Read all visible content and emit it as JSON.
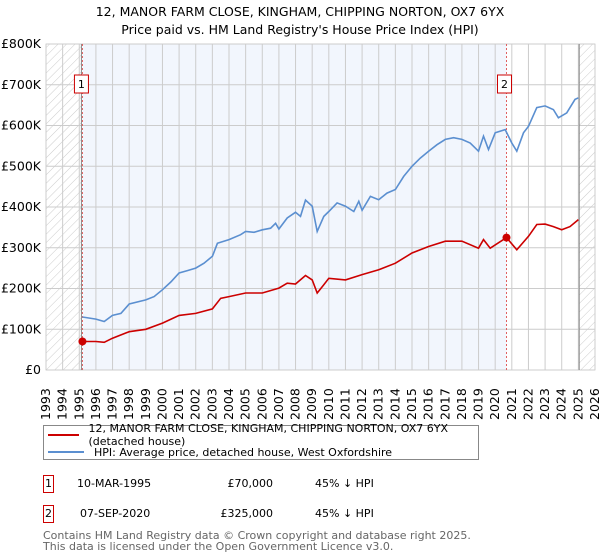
{
  "chart_data": {
    "type": "line",
    "title": "12, MANOR FARM CLOSE, KINGHAM, CHIPPING NORTON, OX7 6YX",
    "subtitle": "Price paid vs. HM Land Registry's House Price Index (HPI)",
    "xlim": [
      1993,
      2026
    ],
    "ylim": [
      0,
      800000
    ],
    "x_ticks": [
      "1993",
      "1994",
      "1995",
      "1996",
      "1997",
      "1998",
      "1999",
      "2000",
      "2001",
      "2002",
      "2003",
      "2004",
      "2005",
      "2006",
      "2007",
      "2008",
      "2009",
      "2010",
      "2011",
      "2012",
      "2013",
      "2014",
      "2015",
      "2016",
      "2017",
      "2018",
      "2019",
      "2020",
      "2021",
      "2022",
      "2023",
      "2024",
      "2025",
      "2026"
    ],
    "y_ticks": [
      {
        "value": 0,
        "label": "£0"
      },
      {
        "value": 100000,
        "label": "£100K"
      },
      {
        "value": 200000,
        "label": "£200K"
      },
      {
        "value": 300000,
        "label": "£300K"
      },
      {
        "value": 400000,
        "label": "£400K"
      },
      {
        "value": 500000,
        "label": "£500K"
      },
      {
        "value": 600000,
        "label": "£600K"
      },
      {
        "value": 700000,
        "label": "£700K"
      },
      {
        "value": 800000,
        "label": "£800K"
      }
    ],
    "grid": true,
    "series": [
      {
        "name": "12, MANOR FARM CLOSE, KINGHAM, CHIPPING NORTON, OX7 6YX (detached house)",
        "color": "#cc0000",
        "x": [
          1995.19,
          1996,
          1996.5,
          1997,
          1998,
          1999,
          2000,
          2001,
          2002,
          2003,
          2003.5,
          2004,
          2005,
          2006,
          2007,
          2007.5,
          2008,
          2008.6,
          2009,
          2009.3,
          2009.7,
          2010,
          2011,
          2012,
          2013,
          2014,
          2015,
          2016,
          2017,
          2018,
          2019,
          2019.3,
          2019.7,
          2020.68,
          2021.3,
          2022,
          2022.5,
          2023,
          2023.5,
          2024,
          2024.5,
          2025
        ],
        "y": [
          70000,
          70000,
          68000,
          78000,
          94000,
          100000,
          115000,
          134000,
          139000,
          150000,
          176000,
          180000,
          189000,
          189000,
          201000,
          213000,
          211000,
          232000,
          221000,
          189000,
          209000,
          225000,
          221000,
          234000,
          246000,
          262000,
          287000,
          303000,
          316000,
          316000,
          299000,
          320000,
          299000,
          325000,
          295000,
          328000,
          357000,
          358000,
          352000,
          344000,
          352000,
          369000
        ]
      },
      {
        "name": "HPI: Average price, detached house, West Oxfordshire",
        "color": "#5b8fd0",
        "x": [
          1995.19,
          1996,
          1996.5,
          1997,
          1997.5,
          1998,
          1999,
          1999.5,
          2000,
          2000.5,
          2001,
          2001.5,
          2002,
          2002.5,
          2003,
          2003.3,
          2004,
          2004.7,
          2005,
          2005.5,
          2006,
          2006.5,
          2006.8,
          2007,
          2007.5,
          2008,
          2008.3,
          2008.6,
          2009,
          2009.3,
          2009.7,
          2010,
          2010.5,
          2011,
          2011.5,
          2011.8,
          2012,
          2012.5,
          2013,
          2013.5,
          2014,
          2014.5,
          2015,
          2015.5,
          2016,
          2016.5,
          2017,
          2017.5,
          2018,
          2018.5,
          2019,
          2019.3,
          2019.6,
          2020,
          2020.6,
          2021,
          2021.3,
          2021.7,
          2022,
          2022.5,
          2023,
          2023.5,
          2023.8,
          2024.3,
          2024.8,
          2025
        ],
        "y": [
          130000,
          125000,
          119000,
          134000,
          139000,
          162000,
          172000,
          180000,
          197000,
          216000,
          238000,
          244000,
          250000,
          262000,
          279000,
          311000,
          320000,
          332000,
          340000,
          338000,
          344000,
          348000,
          360000,
          346000,
          373000,
          387000,
          377000,
          417000,
          402000,
          340000,
          377000,
          389000,
          410000,
          402000,
          389000,
          414000,
          392000,
          426000,
          418000,
          434000,
          443000,
          475000,
          500000,
          520000,
          537000,
          553000,
          566000,
          570000,
          566000,
          557000,
          537000,
          574000,
          541000,
          582000,
          590000,
          557000,
          537000,
          582000,
          598000,
          644000,
          648000,
          639000,
          619000,
          631000,
          664000,
          668000
        ]
      }
    ],
    "sales": [
      {
        "label": "1",
        "x": 1995.19,
        "y": 70000
      },
      {
        "label": "2",
        "x": 2020.68,
        "y": 325000
      }
    ],
    "data_end": 2025.05,
    "legend_position": "below"
  },
  "legend": {
    "property": "12, MANOR FARM CLOSE, KINGHAM, CHIPPING NORTON, OX7 6YX (detached house)",
    "hpi": "HPI: Average price, detached house, West Oxfordshire"
  },
  "transactions": [
    {
      "num": "1",
      "date": "10-MAR-1995",
      "price": "£70,000",
      "hpi": "45% ↓ HPI"
    },
    {
      "num": "2",
      "date": "07-SEP-2020",
      "price": "£325,000",
      "hpi": "45% ↓ HPI"
    }
  ],
  "footer": {
    "line1": "Contains HM Land Registry data © Crown copyright and database right 2025.",
    "line2": "This data is licensed under the Open Government Licence v3.0."
  }
}
